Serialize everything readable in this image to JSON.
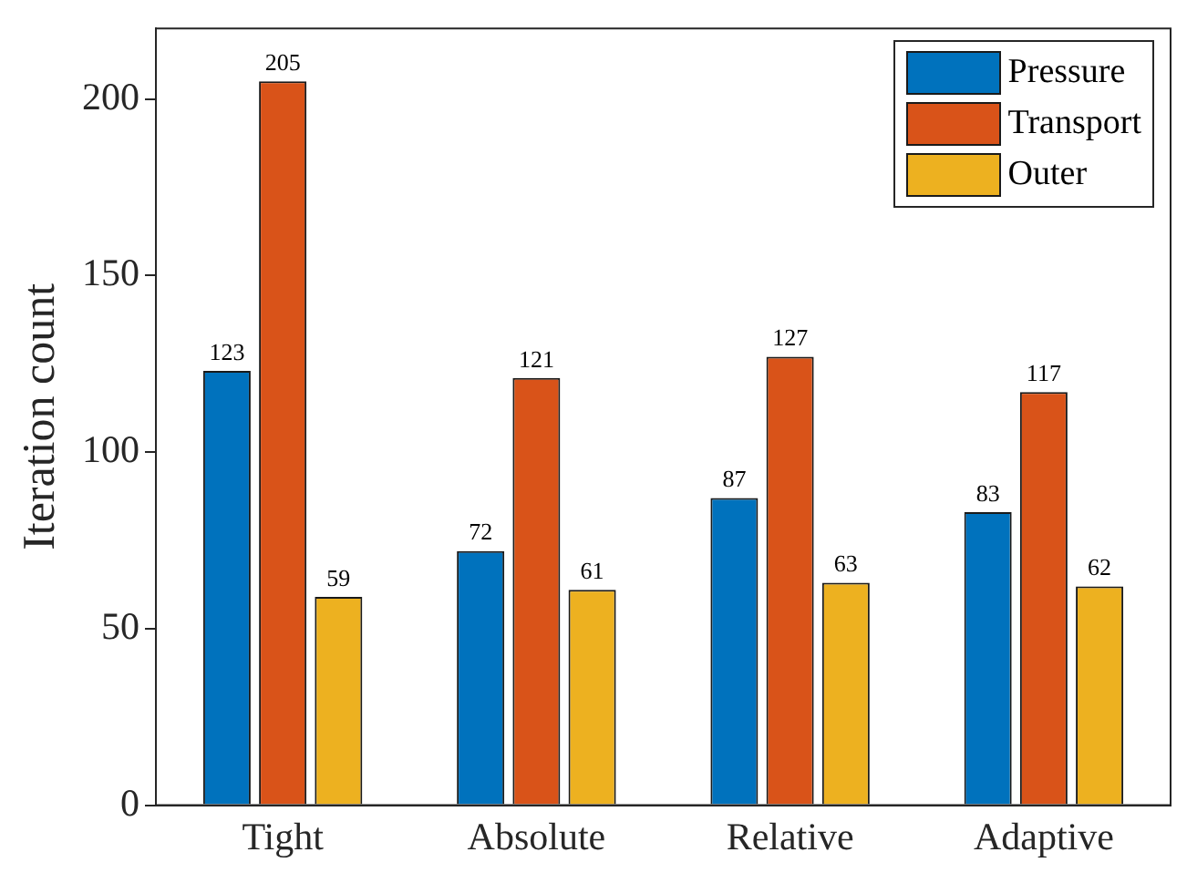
{
  "chart_data": {
    "type": "bar",
    "ylabel": "Iteration count",
    "categories": [
      "Tight",
      "Absolute",
      "Relative",
      "Adaptive"
    ],
    "series": [
      {
        "name": "Pressure",
        "color": "#0072bd",
        "values": [
          123,
          72,
          87,
          83
        ]
      },
      {
        "name": "Transport",
        "color": "#d95319",
        "values": [
          205,
          121,
          127,
          117
        ]
      },
      {
        "name": "Outer",
        "color": "#edb120",
        "values": [
          59,
          61,
          63,
          62
        ]
      }
    ],
    "ylim": [
      0,
      220
    ],
    "yticks": [
      0,
      50,
      100,
      150,
      200
    ],
    "grid": false,
    "legend": "top right",
    "data_labels": true
  }
}
